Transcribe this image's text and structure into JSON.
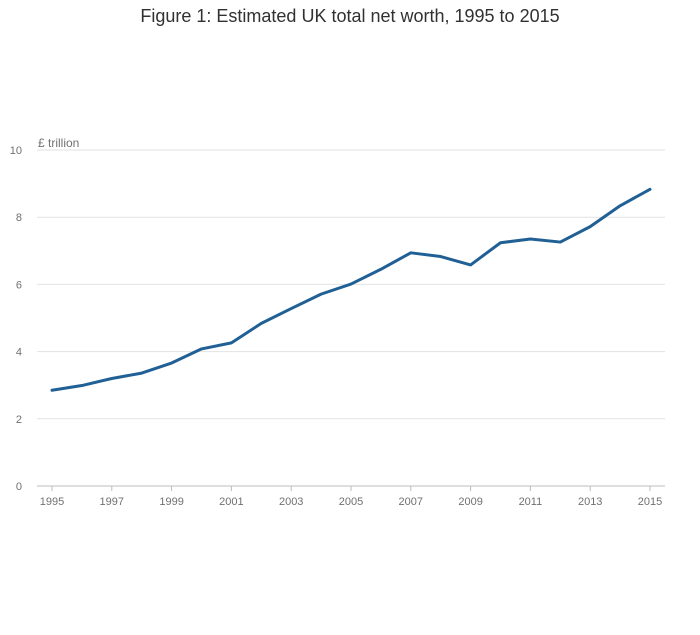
{
  "chart_data": {
    "type": "line",
    "title": "Figure 1: Estimated UK total net worth, 1995 to 2015",
    "xlabel": "",
    "ylabel": "£ trillion",
    "x": [
      1995,
      1996,
      1997,
      1998,
      1999,
      2000,
      2001,
      2002,
      2003,
      2004,
      2005,
      2006,
      2007,
      2008,
      2009,
      2010,
      2011,
      2012,
      2013,
      2014,
      2015
    ],
    "series": [
      {
        "name": "UK total net worth",
        "values": [
          2.85,
          2.99,
          3.2,
          3.36,
          3.66,
          4.08,
          4.26,
          4.84,
          5.28,
          5.71,
          6.01,
          6.45,
          6.94,
          6.83,
          6.58,
          7.24,
          7.35,
          7.26,
          7.72,
          8.34,
          8.83
        ]
      }
    ],
    "xticks": [
      "1995",
      "1997",
      "1999",
      "2001",
      "2003",
      "2005",
      "2007",
      "2009",
      "2011",
      "2013",
      "2015"
    ],
    "yticks": [
      "0",
      "2",
      "4",
      "6",
      "8",
      "10"
    ],
    "ylim": [
      0,
      10
    ],
    "xlim": [
      1995,
      2015
    ],
    "grid": true,
    "colors": {
      "line": "#206095",
      "grid": "#e2e2e3",
      "text": "#707071",
      "title": "#323132"
    }
  }
}
